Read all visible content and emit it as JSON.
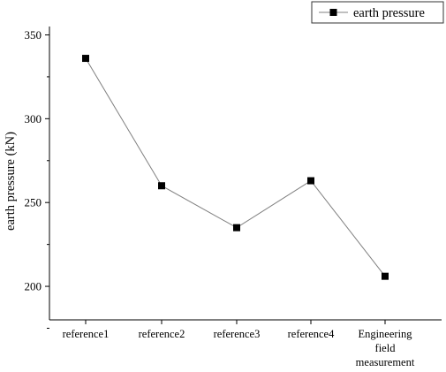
{
  "chart_data": {
    "type": "line",
    "title": "",
    "xlabel": "",
    "ylabel": "earth pressure (kN)",
    "categories": [
      [
        "reference1"
      ],
      [
        "reference2"
      ],
      [
        "reference3"
      ],
      [
        "reference4"
      ],
      [
        "Engineering",
        "field",
        "measurement"
      ]
    ],
    "series": [
      {
        "name": "earth pressure",
        "values": [
          336,
          260,
          235,
          263,
          206
        ],
        "color": "#000000",
        "line_color": "#808080",
        "marker": "square"
      }
    ],
    "ylim": [
      180,
      355
    ],
    "yticks": [
      200,
      250,
      300,
      350
    ],
    "grid": false,
    "legend": "top-right"
  }
}
